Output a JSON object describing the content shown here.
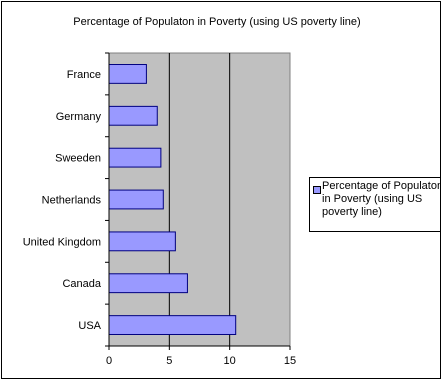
{
  "chart_data": {
    "type": "bar",
    "orientation": "horizontal",
    "title": "Percentage of Populaton in Poverty (using US poverty line)",
    "categories": [
      "France",
      "Germany",
      "Sweeden",
      "Netherlands",
      "United Kingdom",
      "Canada",
      "USA"
    ],
    "series": [
      {
        "name": "Percentage of Populaton in Poverty (using US poverty line)",
        "values": [
          3.1,
          4.0,
          4.3,
          4.5,
          5.5,
          6.5,
          10.5
        ]
      }
    ],
    "xlim": [
      0,
      15
    ],
    "xticks": [
      0,
      5,
      10,
      15
    ],
    "grid": true,
    "legend": "right",
    "colors": {
      "bar": "#9999ff",
      "bar_stroke": "#000080",
      "plot_background": "#c0c0c0",
      "gridline": "#000000"
    }
  }
}
